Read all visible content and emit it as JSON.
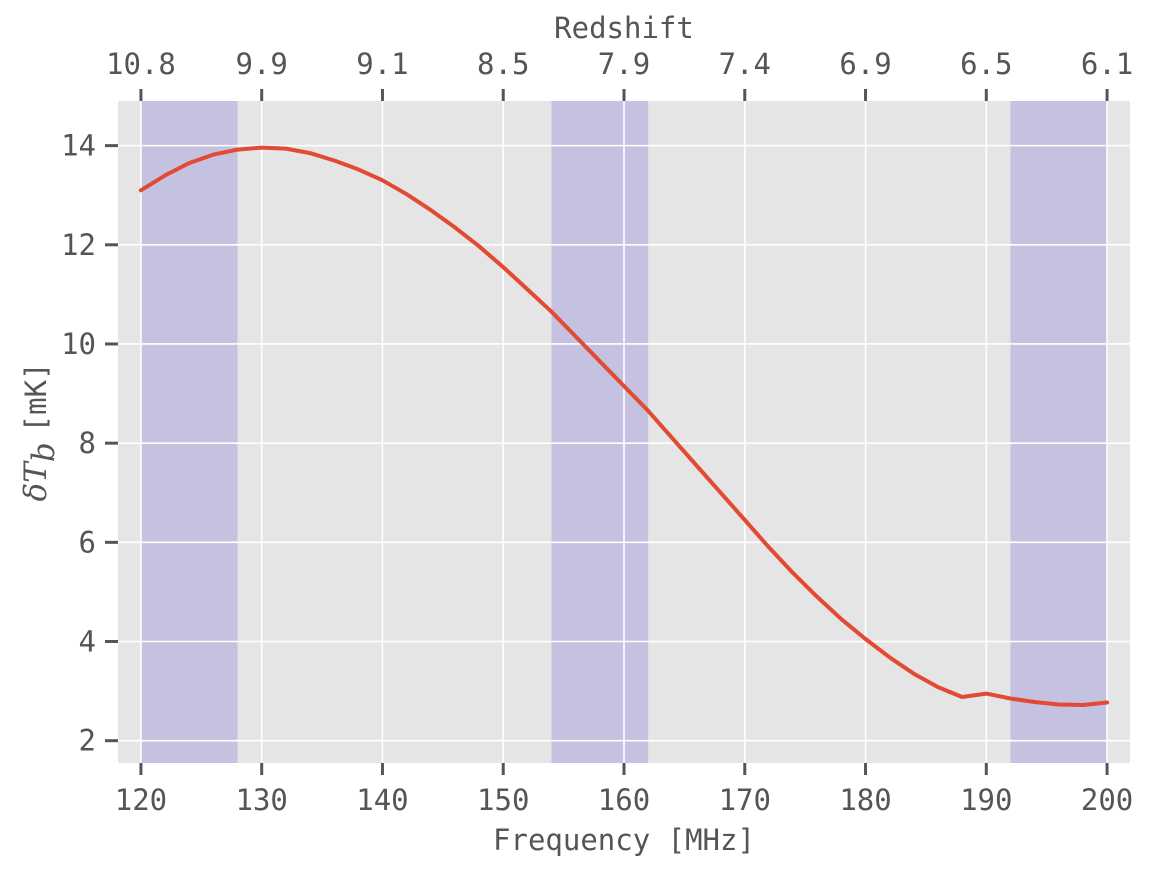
{
  "chart_data": {
    "type": "line",
    "xlabel": "Frequency [MHz]",
    "ylabel_symbol": "δT",
    "ylabel_subscript": "b",
    "ylabel_unit": "[mK]",
    "top_axis_label": "Redshift",
    "xlim": [
      118.1,
      201.9
    ],
    "ylim": [
      1.55,
      14.9
    ],
    "x_ticks": [
      120,
      130,
      140,
      150,
      160,
      170,
      180,
      190,
      200
    ],
    "y_ticks": [
      2,
      4,
      6,
      8,
      10,
      12,
      14
    ],
    "top_ticks": [
      {
        "freq": 120,
        "label": "10.8"
      },
      {
        "freq": 130,
        "label": "9.9"
      },
      {
        "freq": 140,
        "label": "9.1"
      },
      {
        "freq": 150,
        "label": "8.5"
      },
      {
        "freq": 160,
        "label": "7.9"
      },
      {
        "freq": 170,
        "label": "7.4"
      },
      {
        "freq": 180,
        "label": "6.9"
      },
      {
        "freq": 190,
        "label": "6.5"
      },
      {
        "freq": 200,
        "label": "6.1"
      }
    ],
    "shaded_bands": [
      [
        120,
        128
      ],
      [
        154,
        162
      ],
      [
        192,
        200
      ]
    ],
    "grid": true,
    "series": [
      {
        "color": "#E24A33",
        "x": [
          120,
          122,
          124,
          126,
          128,
          130,
          132,
          134,
          136,
          138,
          140,
          142,
          144,
          146,
          148,
          150,
          152,
          154,
          156,
          158,
          160,
          162,
          164,
          166,
          168,
          170,
          172,
          174,
          176,
          178,
          180,
          182,
          184,
          186,
          188,
          190,
          192,
          194,
          196,
          198,
          200
        ],
        "y": [
          13.1,
          13.4,
          13.65,
          13.82,
          13.92,
          13.96,
          13.94,
          13.85,
          13.7,
          13.52,
          13.3,
          13.02,
          12.7,
          12.35,
          11.97,
          11.55,
          11.1,
          10.65,
          10.15,
          9.65,
          9.15,
          8.65,
          8.1,
          7.55,
          7.0,
          6.45,
          5.9,
          5.38,
          4.9,
          4.45,
          4.05,
          3.68,
          3.35,
          3.08,
          2.88,
          2.95,
          2.85,
          2.78,
          2.73,
          2.72,
          2.77
        ]
      }
    ],
    "colors": {
      "background": "#E5E5E5",
      "grid": "#FFFFFF",
      "band": "#C5C1E0",
      "text": "#555555"
    }
  }
}
